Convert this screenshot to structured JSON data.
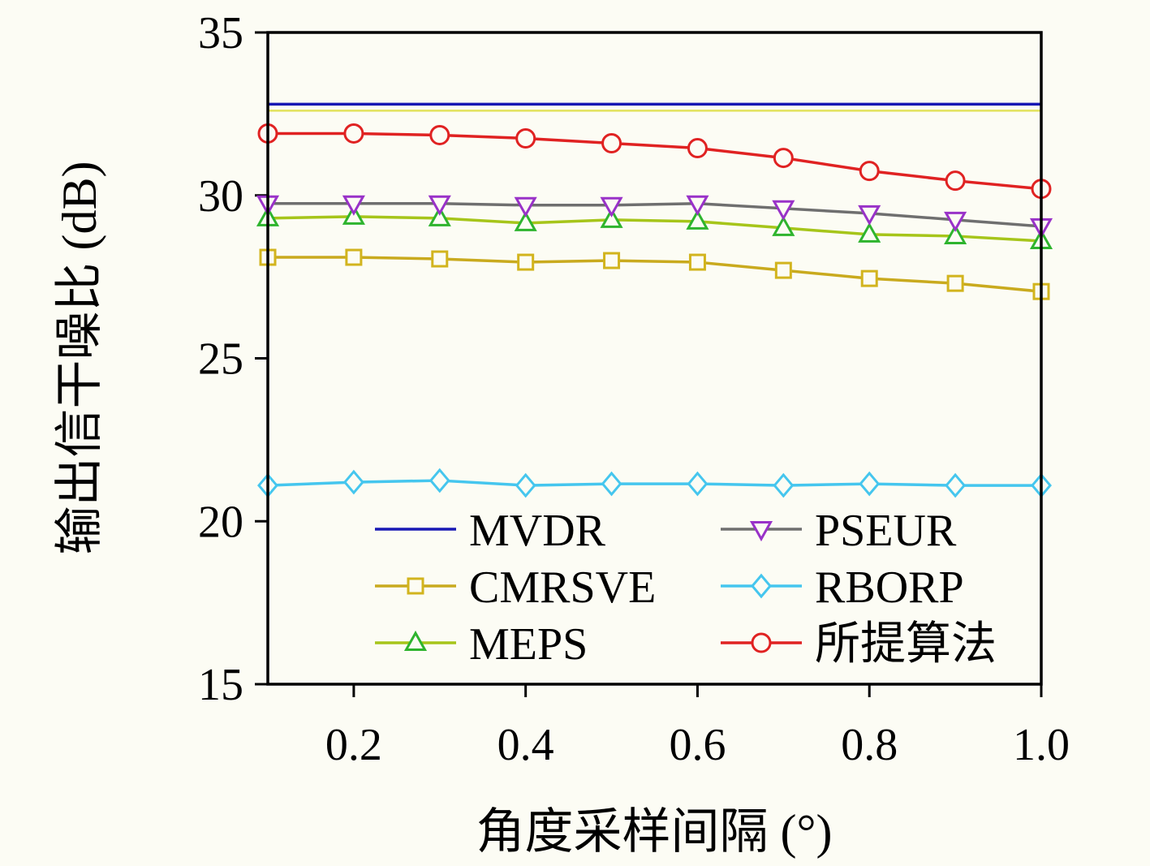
{
  "figure": {
    "background": "#fcfcf4",
    "border_color": "#000000"
  },
  "chart_data": {
    "type": "line",
    "title": "",
    "xlabel": "角度采样间隔 (°)",
    "ylabel": "输出信干噪比 (dB)",
    "xlim": [
      0.1,
      1.0
    ],
    "ylim": [
      15,
      35
    ],
    "grid": false,
    "legend_position": "inside lower-center, two columns",
    "x": [
      0.1,
      0.2,
      0.3,
      0.4,
      0.5,
      0.6,
      0.7,
      0.8,
      0.9,
      1.0
    ],
    "xticks": [
      0.2,
      0.4,
      0.6,
      0.8,
      1.0
    ],
    "xtick_labels": [
      "0.2",
      "0.4",
      "0.6",
      "0.8",
      "1.0"
    ],
    "yticks": [
      15,
      20,
      25,
      30,
      35
    ],
    "ytick_labels": [
      "15",
      "20",
      "25",
      "30",
      "35"
    ],
    "series": [
      {
        "name": "unlabeled_yellow_line",
        "in_legend": false,
        "line_color": "#e2e25c",
        "line_width": 2.5,
        "marker": "none",
        "marker_color": "#e2e25c",
        "values": [
          32.6,
          32.6,
          32.6,
          32.6,
          32.6,
          32.6,
          32.6,
          32.6,
          32.6,
          32.6
        ]
      },
      {
        "name": "MVDR",
        "in_legend": true,
        "line_color": "#1818b4",
        "line_width": 3.5,
        "marker": "none",
        "marker_color": "#1818b4",
        "values": [
          32.8,
          32.8,
          32.8,
          32.8,
          32.8,
          32.8,
          32.8,
          32.8,
          32.8,
          32.8
        ]
      },
      {
        "name": "RBORP",
        "in_legend": true,
        "line_color": "#45c6ee",
        "line_width": 3.5,
        "marker": "diamond",
        "marker_color": "#45c6ee",
        "values": [
          21.1,
          21.2,
          21.25,
          21.1,
          21.15,
          21.15,
          21.1,
          21.15,
          21.1,
          21.1
        ]
      },
      {
        "name": "CMRSVE",
        "in_legend": true,
        "line_color": "#c9aa1e",
        "line_width": 3.5,
        "marker": "square",
        "marker_color": "#d2b41e",
        "values": [
          28.1,
          28.1,
          28.05,
          27.95,
          28.0,
          27.95,
          27.7,
          27.45,
          27.3,
          27.05
        ]
      },
      {
        "name": "MEPS",
        "in_legend": true,
        "line_color": "#a6c51a",
        "line_width": 3.5,
        "marker": "triangle-up",
        "marker_color": "#2eb42e",
        "values": [
          29.3,
          29.35,
          29.3,
          29.15,
          29.25,
          29.2,
          29.0,
          28.8,
          28.75,
          28.6
        ]
      },
      {
        "name": "PSEUR",
        "in_legend": true,
        "line_color": "#6f6f6f",
        "line_width": 3.5,
        "marker": "triangle-down",
        "marker_color": "#9932c8",
        "values": [
          29.75,
          29.75,
          29.75,
          29.7,
          29.7,
          29.75,
          29.6,
          29.45,
          29.25,
          29.05
        ]
      },
      {
        "name": "所提算法",
        "in_legend": true,
        "line_color": "#e02222",
        "line_width": 3.5,
        "marker": "circle",
        "marker_color": "#e02222",
        "values": [
          31.9,
          31.9,
          31.85,
          31.75,
          31.6,
          31.45,
          31.15,
          30.75,
          30.45,
          30.2
        ]
      }
    ],
    "legend": [
      {
        "label": "MVDR",
        "series": "MVDR"
      },
      {
        "label": "CMRSVE",
        "series": "CMRSVE"
      },
      {
        "label": "MEPS",
        "series": "MEPS"
      },
      {
        "label": "PSEUR",
        "series": "PSEUR"
      },
      {
        "label": "RBORP",
        "series": "RBORP"
      },
      {
        "label": "所提算法",
        "series": "所提算法"
      }
    ]
  }
}
